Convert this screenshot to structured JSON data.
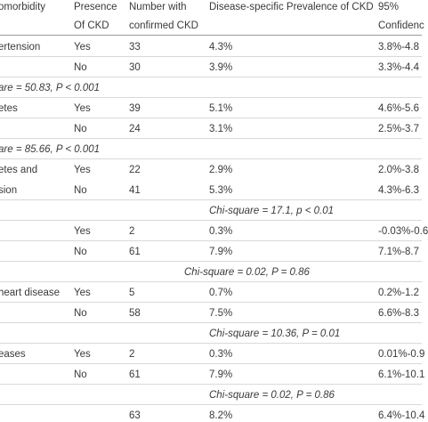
{
  "header": {
    "col1": "omorbidity",
    "col2": [
      "Presence",
      "Of CKD"
    ],
    "col3": [
      "Number with",
      "confirmed CKD"
    ],
    "col4": "Disease-specific Prevalence of CKD",
    "col5": [
      "95%",
      "Confidenc"
    ]
  },
  "rows": [
    {
      "label": "ertension",
      "presence": "Yes",
      "number": "33",
      "prevalence": "4.3%",
      "ci": "3.8%-4.8"
    },
    {
      "label": "",
      "presence": "No",
      "number": "30",
      "prevalence": "3.9%",
      "ci": "3.3%-4.4"
    },
    {
      "stat": "are = 50.83, P < 0.001"
    },
    {
      "label": "etes",
      "presence": "Yes",
      "number": "39",
      "prevalence": "5.1%",
      "ci": "4.6%-5.6"
    },
    {
      "label": "",
      "presence": "No",
      "number": "24",
      "prevalence": "3.1%",
      "ci": "2.5%-3.7"
    },
    {
      "stat": "are = 85.66, P < 0.001"
    },
    {
      "label": "etes and",
      "presence": "Yes",
      "number": "22",
      "prevalence": "2.9%",
      "ci": "2.0%-3.8"
    },
    {
      "label": "sion",
      "presence": "No",
      "number": "41",
      "prevalence": "5.3%",
      "ci": "4.3%-6.3"
    },
    {
      "stat": "Chi-square = 17.1, p < 0.01"
    },
    {
      "label": "",
      "presence": "Yes",
      "number": "2",
      "prevalence": "0.3%",
      "ci": "-0.03%-0.6"
    },
    {
      "label": "",
      "presence": "No",
      "number": "61",
      "prevalence": "7.9%",
      "ci": "7.1%-8.7"
    },
    {
      "stat": "Chi-square = 0.02, P = 0.86"
    },
    {
      "label": "heart disease",
      "presence": "Yes",
      "number": "5",
      "prevalence": "0.7%",
      "ci": "0.2%-1.2"
    },
    {
      "label": "",
      "presence": "No",
      "number": "58",
      "prevalence": "7.5%",
      "ci": "6.6%-8.3"
    },
    {
      "stat": "Chi-square = 10.36, P = 0.01"
    },
    {
      "label": "eases",
      "presence": "Yes",
      "number": "2",
      "prevalence": "0.3%",
      "ci": "0.01%-0.9"
    },
    {
      "label": "",
      "presence": "No",
      "number": "61",
      "prevalence": "7.9%",
      "ci": "6.1%-10.1"
    },
    {
      "stat": "Chi-square = 0.02, P = 0.86"
    },
    {
      "label": "",
      "presence": "",
      "number": "63",
      "prevalence": "8.2%",
      "ci": "6.4%-10.4"
    }
  ]
}
